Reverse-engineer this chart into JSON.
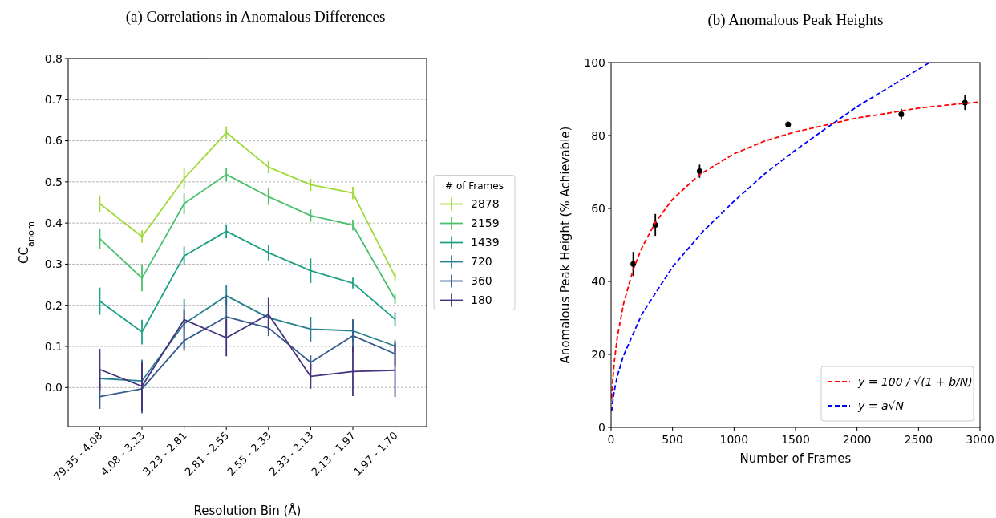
{
  "chart_data": [
    {
      "type": "line",
      "title": "(a) Correlations in Anomalous Differences",
      "xlabel": "Resolution Bin (Å)",
      "ylabel": "CC$_{anom}$",
      "legend_title": "# of Frames",
      "legend": "right",
      "grid": "y",
      "marker": "none",
      "line_style": "solid",
      "categories": [
        "79.35 - 4.08",
        "4.08 - 3.23",
        "3.23 - 2.81",
        "2.81 - 2.55",
        "2.55 - 2.33",
        "2.33 - 2.13",
        "2.13 - 1.97",
        "1.97 - 1.70"
      ],
      "ylim": [
        -0.095,
        0.8
      ],
      "yticks": [
        {
          "value": 0,
          "label": "0.0"
        },
        {
          "value": 0.1,
          "label": "0.1"
        },
        {
          "value": 0.2,
          "label": "0.2"
        },
        {
          "value": 0.3,
          "label": "0.3"
        },
        {
          "value": 0.4,
          "label": "0.4"
        },
        {
          "value": 0.5,
          "label": "0.5"
        },
        {
          "value": 0.6,
          "label": "0.6"
        },
        {
          "value": 0.7,
          "label": "0.7"
        },
        {
          "value": 0.8,
          "label": "0.8"
        }
      ],
      "series": [
        {
          "name": "2878",
          "color": "#9fda3a",
          "values": [
            0.447,
            0.367,
            0.508,
            0.62,
            0.536,
            0.493,
            0.473,
            0.27
          ],
          "errors": [
            0.02,
            0.015,
            0.025,
            0.015,
            0.015,
            0.015,
            0.015,
            0.01
          ]
        },
        {
          "name": "2159",
          "color": "#4ac16d",
          "values": [
            0.362,
            0.266,
            0.447,
            0.518,
            0.464,
            0.418,
            0.395,
            0.215
          ],
          "errors": [
            0.025,
            0.032,
            0.025,
            0.017,
            0.02,
            0.015,
            0.013,
            0.012
          ]
        },
        {
          "name": "1439",
          "color": "#1fa187",
          "values": [
            0.21,
            0.135,
            0.32,
            0.38,
            0.328,
            0.284,
            0.254,
            0.166
          ],
          "errors": [
            0.033,
            0.03,
            0.023,
            0.017,
            0.019,
            0.03,
            0.013,
            0.017
          ]
        },
        {
          "name": "720",
          "color": "#277f8e",
          "values": [
            0.022,
            0.016,
            0.155,
            0.223,
            0.17,
            0.142,
            0.138,
            0.101
          ],
          "errors": [
            0.02,
            0.052,
            0.06,
            0.025,
            0.02,
            0.03,
            0.028,
            0.015
          ]
        },
        {
          "name": "360",
          "color": "#365c8d",
          "values": [
            -0.022,
            -0.003,
            0.114,
            0.172,
            0.145,
            0.061,
            0.126,
            0.082
          ],
          "errors": [
            0.03,
            0.06,
            0.025,
            0.05,
            0.02,
            0.017,
            0.04,
            0.03
          ]
        },
        {
          "name": "180",
          "color": "#46327e",
          "values": [
            0.044,
            0.003,
            0.165,
            0.121,
            0.178,
            0.027,
            0.039,
            0.042
          ],
          "errors": [
            0.05,
            0.06,
            0.025,
            0.045,
            0.04,
            0.03,
            0.06,
            0.065
          ]
        }
      ]
    },
    {
      "type": "scatter",
      "title": "(b) Anomalous Peak Heights",
      "xlabel": "Number of Frames",
      "ylabel": "Anomalous Peak Height (% Achievable)",
      "legend": "bottom right",
      "marker": "circle",
      "xlim": [
        0,
        3000
      ],
      "xticks": [
        0,
        500,
        1000,
        1500,
        2000,
        2500,
        3000
      ],
      "ylim": [
        0,
        100
      ],
      "yticks": [
        0,
        20,
        40,
        60,
        80,
        100
      ],
      "series": [
        {
          "color": "#000000",
          "x": [
            180,
            360,
            720,
            1440,
            2360,
            2878
          ],
          "values": [
            44.8,
            55.5,
            70.2,
            83,
            85.8,
            89
          ],
          "errors": [
            3.3,
            3,
            1.8,
            0.8,
            1.5,
            2
          ]
        },
        {
          "type": "line",
          "name": "y = 100 / √(1 + b/N)",
          "color": "#ff0000",
          "line_style": "dashed",
          "marker": "none",
          "x": [
            5,
            10,
            25,
            50,
            100,
            180,
            250,
            360,
            500,
            720,
            1000,
            1250,
            1500,
            1750,
            2000,
            2250,
            2500,
            2750,
            3000
          ],
          "values": [
            8,
            11.2,
            17.6,
            24.6,
            33.7,
            43.3,
            49.2,
            56.2,
            62.5,
            69.3,
            75,
            78.5,
            81,
            82.9,
            84.8,
            86.1,
            87.5,
            88.4,
            89.2
          ]
        },
        {
          "type": "line",
          "name": "y = a√N",
          "color": "#0000ff",
          "line_style": "dashed",
          "marker": "none",
          "x": [
            5,
            10,
            25,
            50,
            100,
            250,
            500,
            750,
            1000,
            1250,
            1500,
            1750,
            2000,
            2250,
            2590
          ],
          "values": [
            4.4,
            6.2,
            9.8,
            13.9,
            19.6,
            31,
            44,
            53.8,
            62,
            69.5,
            76,
            82,
            87.9,
            93,
            100
          ]
        }
      ]
    }
  ]
}
